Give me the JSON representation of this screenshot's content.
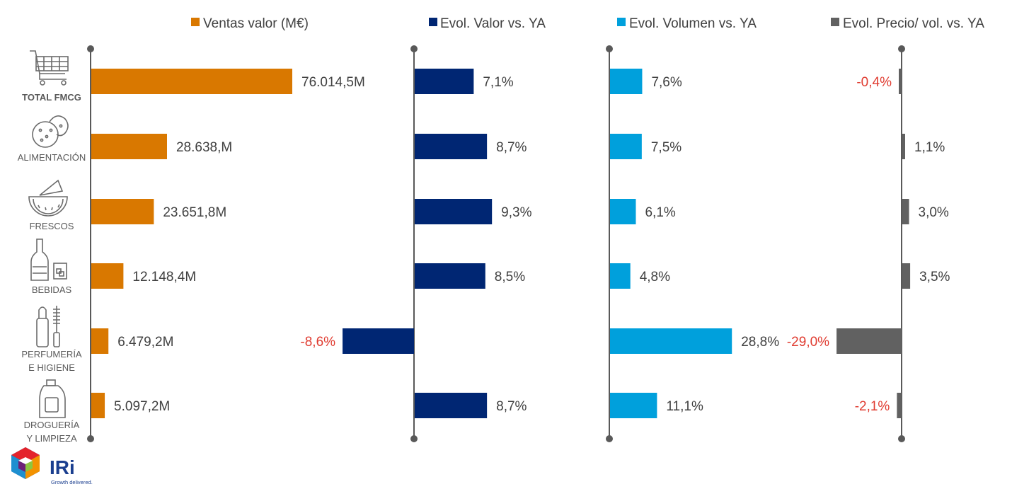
{
  "chart_data": {
    "type": "bar",
    "orientation": "horizontal",
    "categories": [
      "TOTAL FMCG",
      "ALIMENTACIÓN",
      "FRESCOS",
      "BEBIDAS",
      "PERFUMERÍA E HIGIENE",
      "DROGUERÍA Y LIMPIEZA"
    ],
    "category_lines": [
      [
        "TOTAL FMCG"
      ],
      [
        "ALIMENTACIÓN"
      ],
      [
        "FRESCOS"
      ],
      [
        "BEBIDAS"
      ],
      [
        "PERFUMERÍA",
        "E HIGIENE"
      ],
      [
        "DROGUERÍA",
        "Y LIMPIEZA"
      ]
    ],
    "category_icons": [
      "shopping-cart-icon",
      "cookie-icon",
      "watermelon-slice-icon",
      "bottle-glass-icon",
      "toiletries-icon",
      "detergent-bottle-icon"
    ],
    "series": [
      {
        "name": "Ventas valor (M€)",
        "color": "#D97800",
        "values": [
          76014.5,
          28638.0,
          23651.8,
          12148.4,
          6479.2,
          5097.2
        ],
        "labels": [
          "76.014,5M",
          "28.638,M",
          "23.651,8M",
          "12.148,4M",
          "6.479,2M",
          "5.097,2M"
        ]
      },
      {
        "name": "Evol. Valor vs. YA",
        "color": "#002673",
        "values": [
          7.1,
          8.7,
          9.3,
          8.5,
          -8.6,
          8.7
        ],
        "labels": [
          "7,1%",
          "8,7%",
          "9,3%",
          "8,5%",
          "-8,6%",
          "8,7%"
        ]
      },
      {
        "name": "Evol. Volumen vs. YA",
        "color": "#00A0DC",
        "values": [
          7.6,
          7.5,
          6.1,
          4.8,
          28.8,
          11.1
        ],
        "labels": [
          "7,6%",
          "7,5%",
          "6,1%",
          "4,8%",
          "28,8%",
          "11,1%"
        ]
      },
      {
        "name": "Evol. Precio/ vol. vs. YA",
        "color": "#616161",
        "values": [
          -0.4,
          1.1,
          3.0,
          3.5,
          -29.0,
          -2.1
        ],
        "labels": [
          "-0,4%",
          "1,1%",
          "3,0%",
          "3,5%",
          "-29,0%",
          "-2,1%"
        ]
      }
    ],
    "label_color": "#404040",
    "negative_label_color": "#E03C31",
    "axis_color": "#595959",
    "legend_position": "top"
  },
  "logo": {
    "text": "IRi",
    "tagline": "Growth delivered."
  }
}
